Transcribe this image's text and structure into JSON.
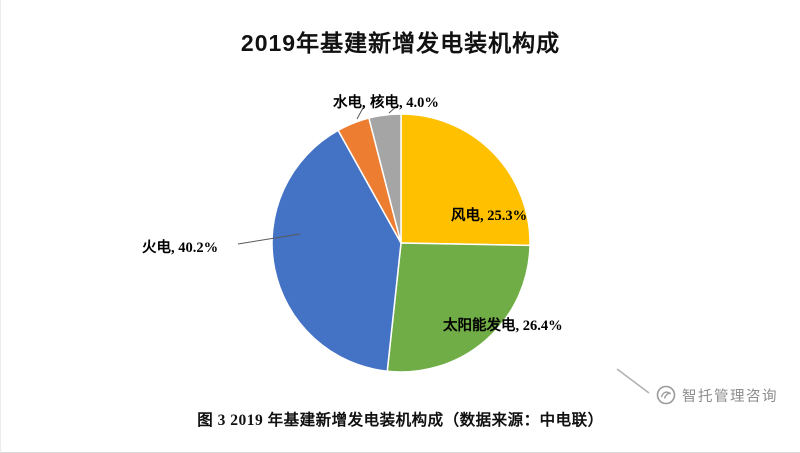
{
  "caption": "图 3 2019 年基建新增发电装机构成（数据来源：中电联）",
  "watermark": "智托管理咨询",
  "chart_data": {
    "type": "pie",
    "title": "2019年基建新增发电装机构成",
    "start_angle_deg": 0,
    "direction": "clockwise",
    "legend": "none",
    "slices": [
      {
        "key": "wind",
        "name": "风电",
        "value": 25.3,
        "color": "#FFC000",
        "label": "风电, 25.3%"
      },
      {
        "key": "solar",
        "name": "太阳能发电",
        "value": 26.4,
        "color": "#70AD47",
        "label": "太阳能发电, 26.4%"
      },
      {
        "key": "thermal",
        "name": "火电",
        "value": 40.2,
        "color": "#4472C4",
        "label": "火电, 40.2%"
      },
      {
        "key": "hydro",
        "name": "水电",
        "value": 4.1,
        "color": "#ED7D31",
        "label": "水电,"
      },
      {
        "key": "nuclear",
        "name": "核电",
        "value": 4.0,
        "color": "#A5A5A5",
        "label": "核电, 4.0%"
      }
    ]
  }
}
